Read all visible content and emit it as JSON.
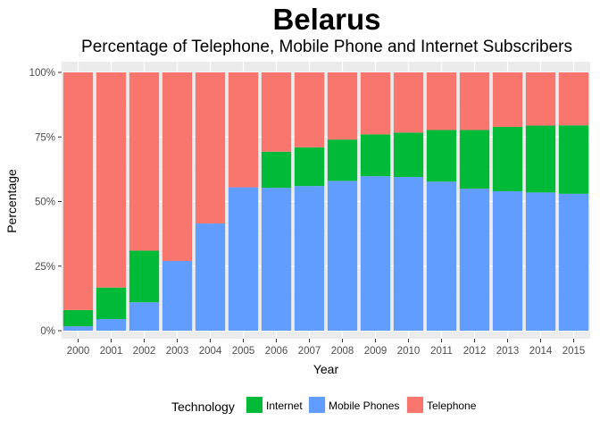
{
  "chart_data": {
    "type": "bar",
    "stacked": true,
    "normalized": true,
    "title": "Belarus",
    "subtitle": "Percentage of Telephone, Mobile Phone and Internet Subscribers",
    "xlabel": "Year",
    "ylabel": "Percentage",
    "ylim": [
      0,
      1
    ],
    "yticks": [
      "0%",
      "25%",
      "50%",
      "75%",
      "100%"
    ],
    "grid": true,
    "legend_position": "bottom",
    "legend_title": "Technology",
    "categories": [
      "2000",
      "2001",
      "2002",
      "2003",
      "2004",
      "2005",
      "2006",
      "2007",
      "2008",
      "2009",
      "2010",
      "2011",
      "2012",
      "2013",
      "2014",
      "2015"
    ],
    "series": [
      {
        "name": "Mobile Phones",
        "color": "#619CFF",
        "values": [
          0.017,
          0.045,
          0.11,
          0.27,
          0.415,
          0.555,
          0.553,
          0.56,
          0.58,
          0.598,
          0.595,
          0.577,
          0.55,
          0.54,
          0.535,
          0.53
        ]
      },
      {
        "name": "Internet",
        "color": "#00BA38",
        "values": [
          0.063,
          0.122,
          0.2,
          0.0,
          0.0,
          0.0,
          0.14,
          0.15,
          0.16,
          0.162,
          0.172,
          0.2,
          0.227,
          0.249,
          0.259,
          0.265
        ]
      },
      {
        "name": "Telephone",
        "color": "#F8766D",
        "values": [
          0.92,
          0.833,
          0.69,
          0.73,
          0.585,
          0.445,
          0.307,
          0.29,
          0.26,
          0.24,
          0.233,
          0.223,
          0.223,
          0.211,
          0.206,
          0.205
        ]
      }
    ],
    "legend_order": [
      "Internet",
      "Mobile Phones",
      "Telephone"
    ]
  }
}
